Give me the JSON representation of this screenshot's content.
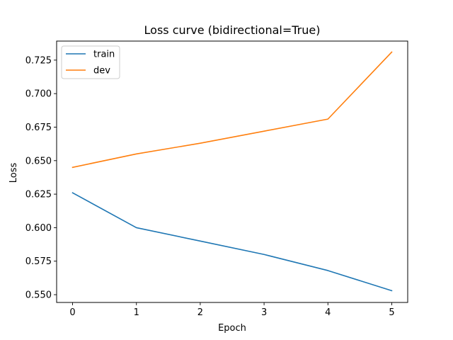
{
  "chart_data": {
    "type": "line",
    "title": "Loss curve (bidirectional=True)",
    "xlabel": "Epoch",
    "ylabel": "Loss",
    "x": [
      0,
      1,
      2,
      3,
      4,
      5
    ],
    "xlim": [
      -0.25,
      5.25
    ],
    "ylim": [
      0.5442,
      0.7392
    ],
    "xticks": [
      "0",
      "1",
      "2",
      "3",
      "4",
      "5"
    ],
    "yticks": [
      "0.550",
      "0.575",
      "0.600",
      "0.625",
      "0.650",
      "0.675",
      "0.700",
      "0.725"
    ],
    "legend_position": "top-left",
    "grid": false,
    "series": [
      {
        "name": "train",
        "color": "#1f77b4",
        "values": [
          0.626,
          0.6,
          0.59,
          0.58,
          0.568,
          0.553
        ]
      },
      {
        "name": "dev",
        "color": "#ff7f0e",
        "values": [
          0.645,
          0.655,
          0.663,
          0.672,
          0.681,
          0.731
        ]
      }
    ]
  }
}
